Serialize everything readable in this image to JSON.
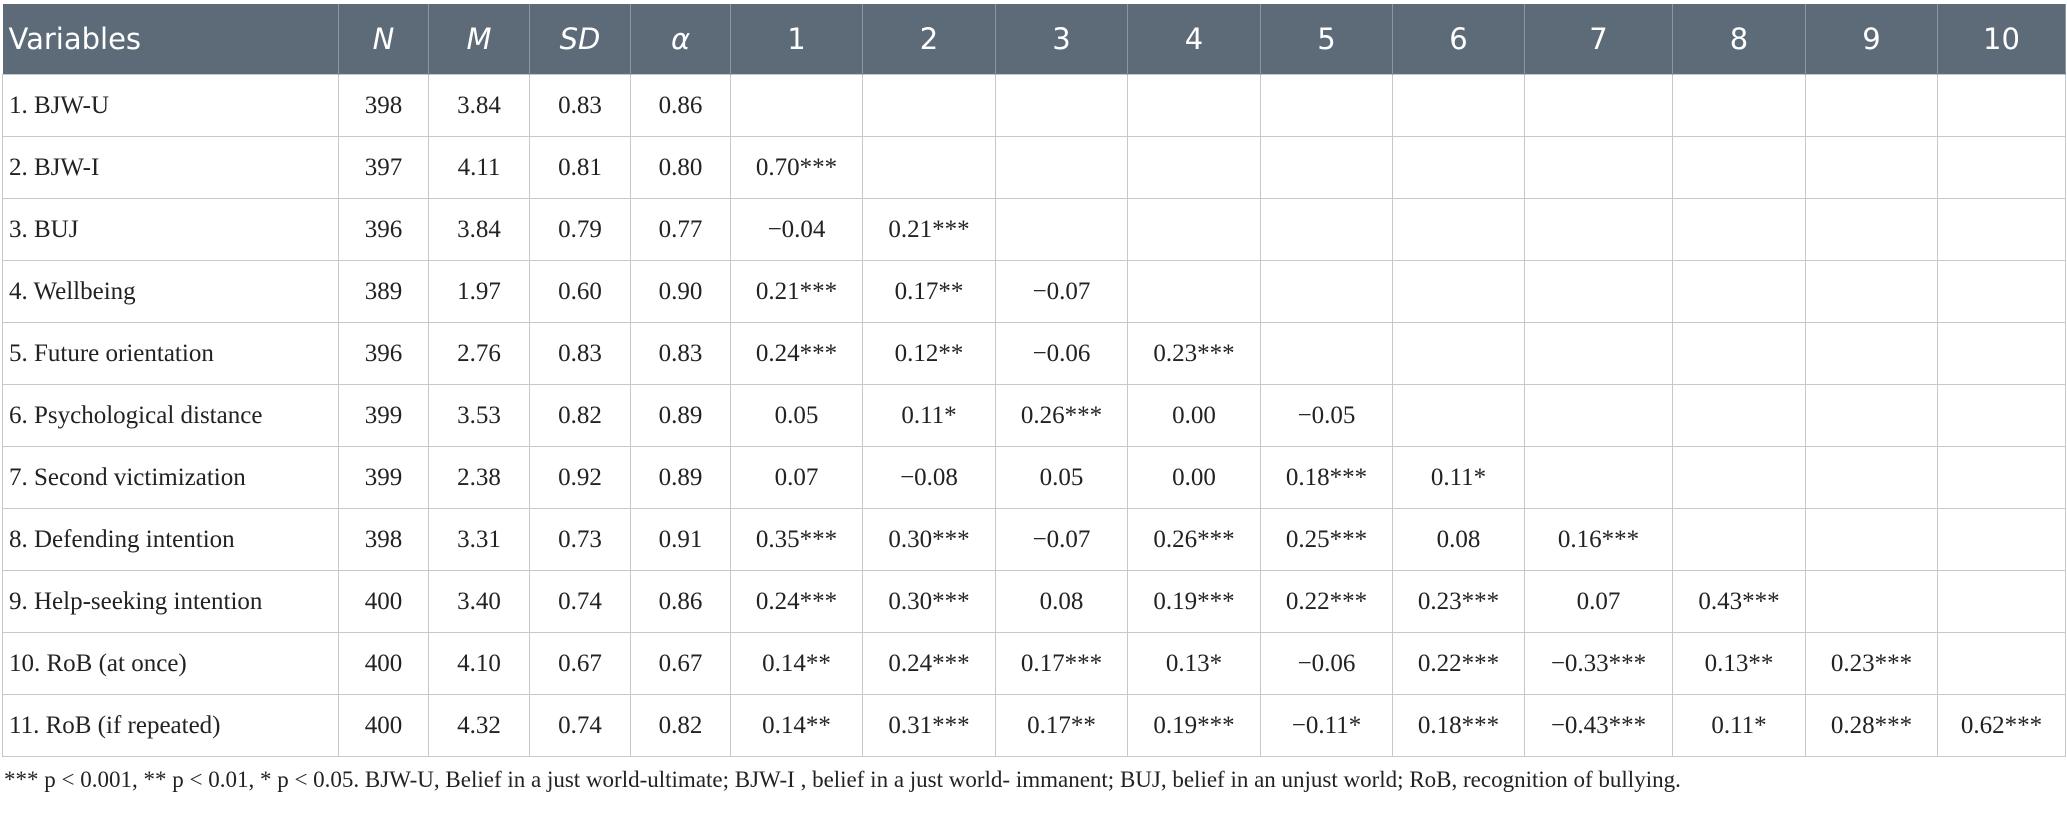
{
  "table": {
    "header": [
      "Variables",
      "N",
      "M",
      "SD",
      "α",
      "1",
      "2",
      "3",
      "4",
      "5",
      "6",
      "7",
      "8",
      "9",
      "10"
    ],
    "rows": [
      [
        "1. BJW-U",
        "398",
        "3.84",
        "0.83",
        "0.86"
      ],
      [
        "2. BJW-I",
        "397",
        "4.11",
        "0.81",
        "0.80",
        "0.70***"
      ],
      [
        "3. BUJ",
        "396",
        "3.84",
        "0.79",
        "0.77",
        "−0.04",
        "0.21***"
      ],
      [
        "4. Wellbeing",
        "389",
        "1.97",
        "0.60",
        "0.90",
        "0.21***",
        "0.17**",
        "−0.07"
      ],
      [
        "5. Future orientation",
        "396",
        "2.76",
        "0.83",
        "0.83",
        "0.24***",
        "0.12**",
        "−0.06",
        "0.23***"
      ],
      [
        "6. Psychological distance",
        "399",
        "3.53",
        "0.82",
        "0.89",
        "0.05",
        "0.11*",
        "0.26***",
        "0.00",
        "−0.05"
      ],
      [
        "7. Second victimization",
        "399",
        "2.38",
        "0.92",
        "0.89",
        "0.07",
        "−0.08",
        "0.05",
        "0.00",
        "0.18***",
        "0.11*"
      ],
      [
        "8. Defending intention",
        "398",
        "3.31",
        "0.73",
        "0.91",
        "0.35***",
        "0.30***",
        "−0.07",
        "0.26***",
        "0.25***",
        "0.08",
        "0.16***"
      ],
      [
        "9. Help-seeking intention",
        "400",
        "3.40",
        "0.74",
        "0.86",
        "0.24***",
        "0.30***",
        "0.08",
        "0.19***",
        "0.22***",
        "0.23***",
        "0.07",
        "0.43***"
      ],
      [
        "10. RoB (at once)",
        "400",
        "4.10",
        "0.67",
        "0.67",
        "0.14**",
        "0.24***",
        "0.17***",
        "0.13*",
        "−0.06",
        "0.22***",
        "−0.33***",
        "0.13**",
        "0.23***"
      ],
      [
        "11. RoB (if repeated)",
        "400",
        "4.32",
        "0.74",
        "0.82",
        "0.14**",
        "0.31***",
        "0.17**",
        "0.19***",
        "−0.11*",
        "0.18***",
        "−0.43***",
        "0.11*",
        "0.28***",
        "0.62***"
      ]
    ]
  },
  "footnote": "*** p < 0.001, ** p < 0.01, * p < 0.05. BJW-U, Belief in a just world-ultimate; BJW-I , belief in a just world- immanent; BUJ, belief in an unjust world; RoB, recognition of bullying."
}
